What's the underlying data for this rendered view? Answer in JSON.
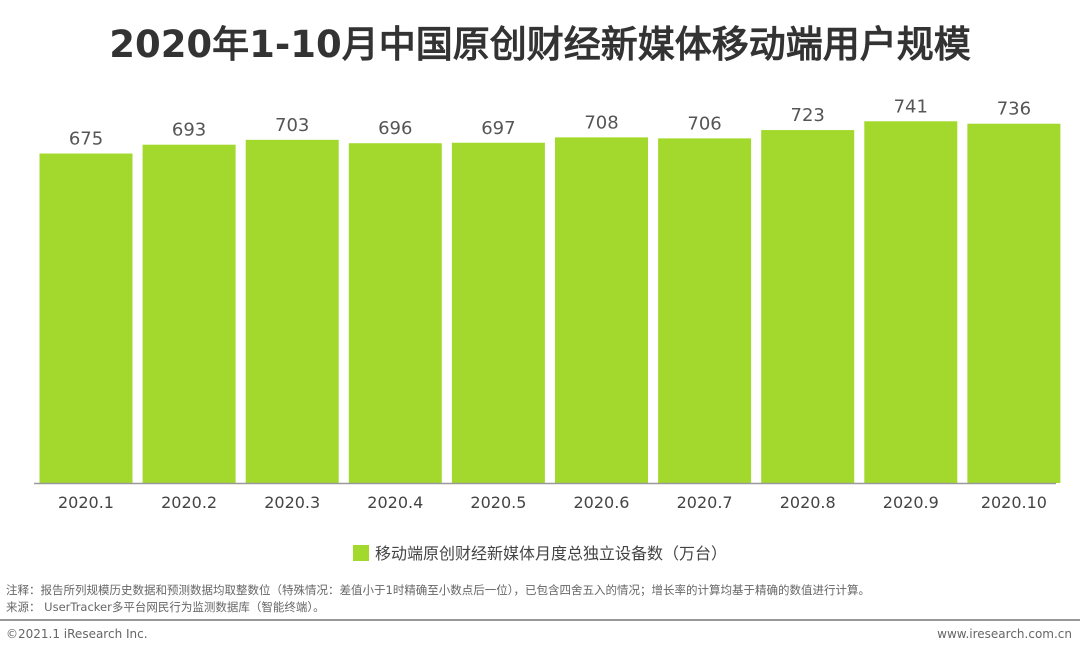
{
  "chart_data": {
    "type": "bar",
    "title": "2020年1-10月中国原创财经新媒体移动端用户规模",
    "categories": [
      "2020.1",
      "2020.2",
      "2020.3",
      "2020.4",
      "2020.5",
      "2020.6",
      "2020.7",
      "2020.8",
      "2020.9",
      "2020.10"
    ],
    "series": [
      {
        "name": "移动端原创财经新媒体月度总独立设备数（万台）",
        "values": [
          675,
          693,
          703,
          696,
          697,
          708,
          706,
          723,
          741,
          736
        ],
        "color": "#a2d92c"
      }
    ],
    "xlabel": "",
    "ylabel": "",
    "ylim": [
      0,
      760
    ],
    "grid": false,
    "legend": "bottom"
  },
  "notes": {
    "note": "注释：报告所列规模历史数据和预测数据均取整数位（特殊情况：差值小于1时精确至小数点后一位），已包含四舍五入的情况；增长率的计算均基于精确的数值进行计算。",
    "source": "来源： UserTracker多平台网民行为监测数据库（智能终端）。"
  },
  "footer": {
    "copyright": "©2021.1 iResearch Inc.",
    "website": "www.iresearch.com.cn"
  }
}
